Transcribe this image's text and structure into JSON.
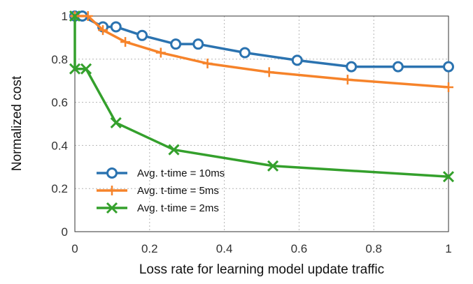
{
  "chart_data": {
    "type": "line",
    "title": "",
    "xlabel": "Loss rate for learning model update traffic",
    "ylabel": "Normalized cost",
    "xlim": [
      0,
      1
    ],
    "ylim": [
      0,
      1
    ],
    "x_ticks": [
      {
        "value": 0,
        "label": "0"
      },
      {
        "value": 0.2,
        "label": "0.2"
      },
      {
        "value": 0.4,
        "label": "0.4"
      },
      {
        "value": 0.6,
        "label": "0.6"
      },
      {
        "value": 0.8,
        "label": "0.8"
      },
      {
        "value": 1,
        "label": "1"
      }
    ],
    "y_ticks": [
      {
        "value": 0,
        "label": "0"
      },
      {
        "value": 0.2,
        "label": "0.2"
      },
      {
        "value": 0.4,
        "label": "0.4"
      },
      {
        "value": 0.6,
        "label": "0.6"
      },
      {
        "value": 0.8,
        "label": "0.8"
      },
      {
        "value": 1,
        "label": "1"
      }
    ],
    "grid": true,
    "legend_position": "bottom-left",
    "series": [
      {
        "name": "Avg. t-time = 10ms",
        "color": "#2b73b0",
        "marker": "circle",
        "points": [
          {
            "x": 0.0,
            "y": 1.0
          },
          {
            "x": 0.02,
            "y": 1.0
          },
          {
            "x": 0.075,
            "y": 0.95
          },
          {
            "x": 0.11,
            "y": 0.95
          },
          {
            "x": 0.18,
            "y": 0.91
          },
          {
            "x": 0.27,
            "y": 0.87
          },
          {
            "x": 0.33,
            "y": 0.87
          },
          {
            "x": 0.455,
            "y": 0.83
          },
          {
            "x": 0.595,
            "y": 0.795
          },
          {
            "x": 0.74,
            "y": 0.765
          },
          {
            "x": 0.865,
            "y": 0.765
          },
          {
            "x": 1.0,
            "y": 0.765
          }
        ]
      },
      {
        "name": "Avg. t-time = 5ms",
        "color": "#f6832a",
        "marker": "plus",
        "points": [
          {
            "x": 0.0,
            "y": 1.0
          },
          {
            "x": 0.035,
            "y": 1.0
          },
          {
            "x": 0.075,
            "y": 0.935
          },
          {
            "x": 0.135,
            "y": 0.88
          },
          {
            "x": 0.23,
            "y": 0.83
          },
          {
            "x": 0.355,
            "y": 0.78
          },
          {
            "x": 0.52,
            "y": 0.74
          },
          {
            "x": 0.73,
            "y": 0.705
          },
          {
            "x": 1.0,
            "y": 0.67
          }
        ]
      },
      {
        "name": "Avg. t-time = 2ms",
        "color": "#34a02c",
        "marker": "x",
        "points": [
          {
            "x": 0.0,
            "y": 1.0
          },
          {
            "x": 0.0,
            "y": 0.755
          },
          {
            "x": 0.03,
            "y": 0.755
          },
          {
            "x": 0.11,
            "y": 0.505
          },
          {
            "x": 0.265,
            "y": 0.38
          },
          {
            "x": 0.53,
            "y": 0.305
          },
          {
            "x": 1.0,
            "y": 0.255
          }
        ]
      }
    ]
  }
}
